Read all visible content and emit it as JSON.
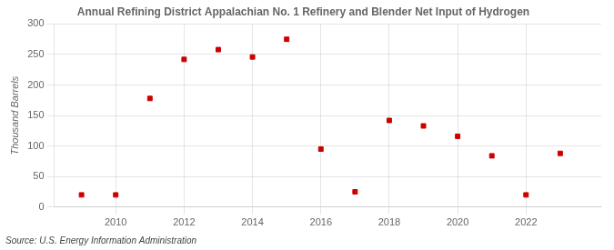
{
  "chart_data": {
    "type": "scatter",
    "title": "Annual Refining District Appalachian No. 1 Refinery and Blender Net Input of Hydrogen",
    "y_label": "Thousand Barrels",
    "annotations": [
      "Source: U.S. Energy Information Administration"
    ],
    "x": [
      2009,
      2010,
      2011,
      2012,
      2013,
      2014,
      2015,
      2016,
      2017,
      2018,
      2019,
      2020,
      2021,
      2022,
      2023
    ],
    "values": [
      20,
      20,
      178,
      242,
      258,
      246,
      275,
      95,
      25,
      142,
      133,
      116,
      84,
      20,
      88
    ],
    "color": "#cc0000",
    "marker": "square",
    "xlim": [
      2008.2,
      2024.2
    ],
    "xticks": [
      2010,
      2012,
      2014,
      2016,
      2018,
      2020,
      2022
    ],
    "ylim": [
      0,
      300
    ],
    "yticks": [
      0,
      50,
      100,
      150,
      200,
      250,
      300
    ],
    "grid": true
  }
}
